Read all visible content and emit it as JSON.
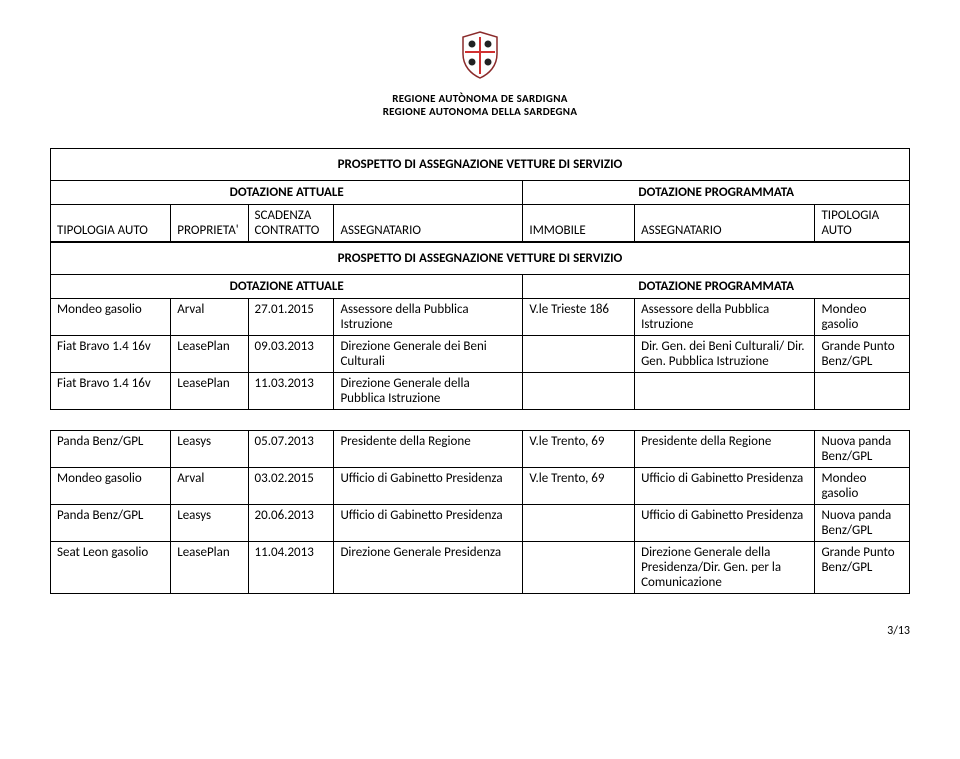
{
  "header": {
    "line1": "REGIONE AUTÒNOMA DE SARDIGNA",
    "line2": "REGIONE AUTONOMA DELLA SARDEGNA"
  },
  "table1": {
    "title": "PROSPETTO DI ASSEGNAZIONE VETTURE DI SERVIZIO",
    "section_left": "DOTAZIONE ATTUALE",
    "section_right": "DOTAZIONE PROGRAMMATA",
    "hdr": {
      "tipologia_auto_l": "TIPOLOGIA AUTO",
      "proprieta": "PROPRIETA'",
      "scadenza_contratto": "SCADENZA CONTRATTO",
      "assegnatario_l": "ASSEGNATARIO",
      "immobile": "IMMOBILE",
      "assegnatario_r": "ASSEGNATARIO",
      "tipologia_auto_r": "TIPOLOGIA AUTO"
    }
  },
  "table2": {
    "title": "PROSPETTO DI ASSEGNAZIONE VETTURE DI SERVIZIO",
    "section_left": "DOTAZIONE ATTUALE",
    "section_right": "DOTAZIONE PROGRAMMATA",
    "rows": [
      {
        "c0": "Mondeo gasolio",
        "c1": "Arval",
        "c2": "27.01.2015",
        "c3": "Assessore della Pubblica Istruzione",
        "c4": "V.le Trieste 186",
        "c5": "Assessore della Pubblica Istruzione",
        "c6": "Mondeo gasolio"
      },
      {
        "c0": "Fiat Bravo 1.4 16v",
        "c1": "LeasePlan",
        "c2": "09.03.2013",
        "c3": "Direzione Generale dei Beni Culturali",
        "c4": "",
        "c5": "Dir. Gen. dei Beni Culturali/ Dir. Gen. Pubblica Istruzione",
        "c6": "Grande Punto Benz/GPL"
      },
      {
        "c0": "Fiat Bravo 1.4 16v",
        "c1": "LeasePlan",
        "c2": "11.03.2013",
        "c3": "Direzione Generale della Pubblica Istruzione",
        "c4": "",
        "c5": "",
        "c6": ""
      }
    ]
  },
  "table3": {
    "rows": [
      {
        "c0": "Panda Benz/GPL",
        "c1": "Leasys",
        "c2": "05.07.2013",
        "c3": "Presidente della Regione",
        "c4": "V.le Trento, 69",
        "c5": "Presidente della Regione",
        "c6": "Nuova panda Benz/GPL"
      },
      {
        "c0": "Mondeo gasolio",
        "c1": "Arval",
        "c2": "03.02.2015",
        "c3": "Ufficio di Gabinetto Presidenza",
        "c4": "V.le Trento, 69",
        "c5": "Ufficio di Gabinetto Presidenza",
        "c6": "Mondeo gasolio"
      },
      {
        "c0": "Panda Benz/GPL",
        "c1": "Leasys",
        "c2": "20.06.2013",
        "c3": "Ufficio di Gabinetto Presidenza",
        "c4": "",
        "c5": "Ufficio di Gabinetto Presidenza",
        "c6": "Nuova panda Benz/GPL"
      },
      {
        "c0": "Seat Leon gasolio",
        "c1": "LeasePlan",
        "c2": "11.04.2013",
        "c3": "Direzione Generale Presidenza",
        "c4": "",
        "c5": "Direzione Generale della Presidenza/Dir. Gen. per la Comunicazione",
        "c6": "Grande Punto Benz/GPL"
      }
    ]
  },
  "page_number": "3/13",
  "colors": {
    "text": "#000000",
    "background": "#ffffff",
    "border": "#000000"
  },
  "col_widths_pct": [
    14,
    9,
    10,
    22,
    13,
    21,
    11
  ],
  "fonts": {
    "body_size_pt": 13,
    "region_size_pt": 11
  }
}
